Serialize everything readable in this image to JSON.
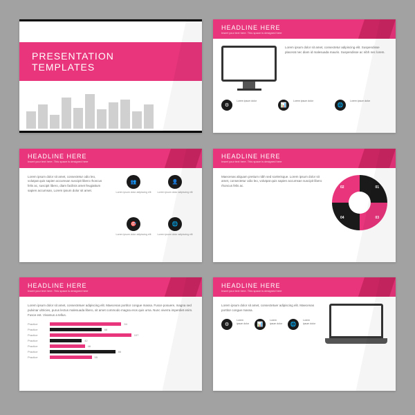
{
  "colors": {
    "accent": "#e8357b",
    "dark": "#1a1a1a",
    "bg": "#a2a2a2"
  },
  "slide1": {
    "title": "PRESENTATION",
    "subtitle": "TEMPLATES",
    "buildings": [
      25,
      35,
      20,
      45,
      30,
      50,
      28,
      38,
      42,
      25,
      35
    ]
  },
  "slide2": {
    "headline": "HEADLINE HERE",
    "sub": "Insert your text here. This space is designed here",
    "text": "Lorem ipsum dolor sit amet, consectetur adipiscing elit. Suspendisse placerat nec diam id malesuada mauris. Suspendisse ac nibh nec lorem.",
    "iconLabels": [
      "gears",
      "graph",
      "globe"
    ]
  },
  "slide3": {
    "headline": "HEADLINE HERE",
    "sub": "Insert your text here. This space is designed here",
    "text": "Lorem ipsum dolor sit amet, consectetur odio leo, volutpat quis sapien accumsan suscipit libero rhoncus felis ac, suscipit libero, diam facilisis amet feugiattum sapien accumsan, Lorem ipsum dolor sit amet.",
    "cells": [
      {
        "icon": "users",
        "text": "Lorem ipsum dolor adipiscing elit"
      },
      {
        "icon": "user",
        "text": "Lorem ipsum dolor adipiscing elit"
      },
      {
        "icon": "target",
        "text": "Lorem ipsum dolor adipiscing elit"
      },
      {
        "icon": "globe",
        "text": "Lorem ipsum dolor adipiscing elit"
      }
    ]
  },
  "slide4": {
    "headline": "HEADLINE HERE",
    "sub": "Insert your text here. This space is designed here",
    "text": "Maecenas aliquam pretium nibh sed scelerisque. Lorem ipsum dolor sit amet, consectetur odio leo, volutpat quis sapien accumsan suscipit libero rhoncus felis ac.",
    "segments": [
      {
        "n": "01",
        "c": "#1a1a1a"
      },
      {
        "n": "02",
        "c": "#e8357b"
      },
      {
        "n": "03",
        "c": "#1a1a1a"
      },
      {
        "n": "04",
        "c": "#e8357b"
      }
    ]
  },
  "slide5": {
    "headline": "HEADLINE HERE",
    "sub": "Insert your text here. This space is designed here",
    "text": "Lorem ipsum dolor sit amet, consectetuer adipiscing elit. Maecenas portitor congue massa. Fusce posuere, magna sed pulvinar ultricies, purus lectus malesuada libero, sit amet commodo magna eros quis urna. Nunc viverra imperdiet enim. Fusce est. Vivamus a tellus.",
    "bars": [
      {
        "label": "Practice",
        "val": 94,
        "dark": false
      },
      {
        "label": "Practice",
        "val": 68,
        "dark": true
      },
      {
        "label": "Practice",
        "val": 107,
        "dark": false
      },
      {
        "label": "Practice",
        "val": 42,
        "dark": true
      },
      {
        "label": "Practice",
        "val": 46,
        "dark": false
      },
      {
        "label": "Practice",
        "val": 86,
        "dark": true
      },
      {
        "label": "Practice",
        "val": 55,
        "dark": false
      }
    ]
  },
  "slide6": {
    "headline": "HEADLINE HERE",
    "sub": "Insert your text here. This space is designed here",
    "text": "Lorem ipsum dolor sit amet, consectetuer adipiscing elit. Maecenas portitor congue massa.",
    "iconLabels": [
      "gears",
      "graph",
      "globe"
    ]
  }
}
